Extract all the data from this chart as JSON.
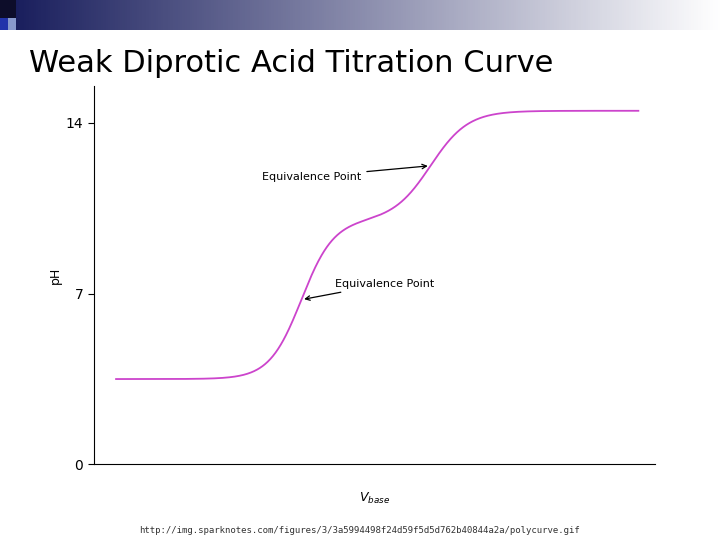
{
  "title": "Weak Diprotic Acid Titration Curve",
  "ylabel": "pH",
  "yticks": [
    0,
    7,
    14
  ],
  "ylim": [
    0,
    15.5
  ],
  "xlim": [
    0,
    1.0
  ],
  "curve_color": "#cc44cc",
  "curve_linewidth": 1.3,
  "background_color": "#ffffff",
  "title_fontsize": 22,
  "title_fontweight": "normal",
  "annotation1_text": "Equivalence Point",
  "annotation2_text": "Equivalence Point",
  "url_text": "http://img.sparknotes.com/figures/3/3a5994498f24d59f5d5d762b40844a2a/polycurve.gif",
  "ep1_curve_x": 0.6,
  "ep2_curve_x": 0.37,
  "annot_fontsize": 8
}
